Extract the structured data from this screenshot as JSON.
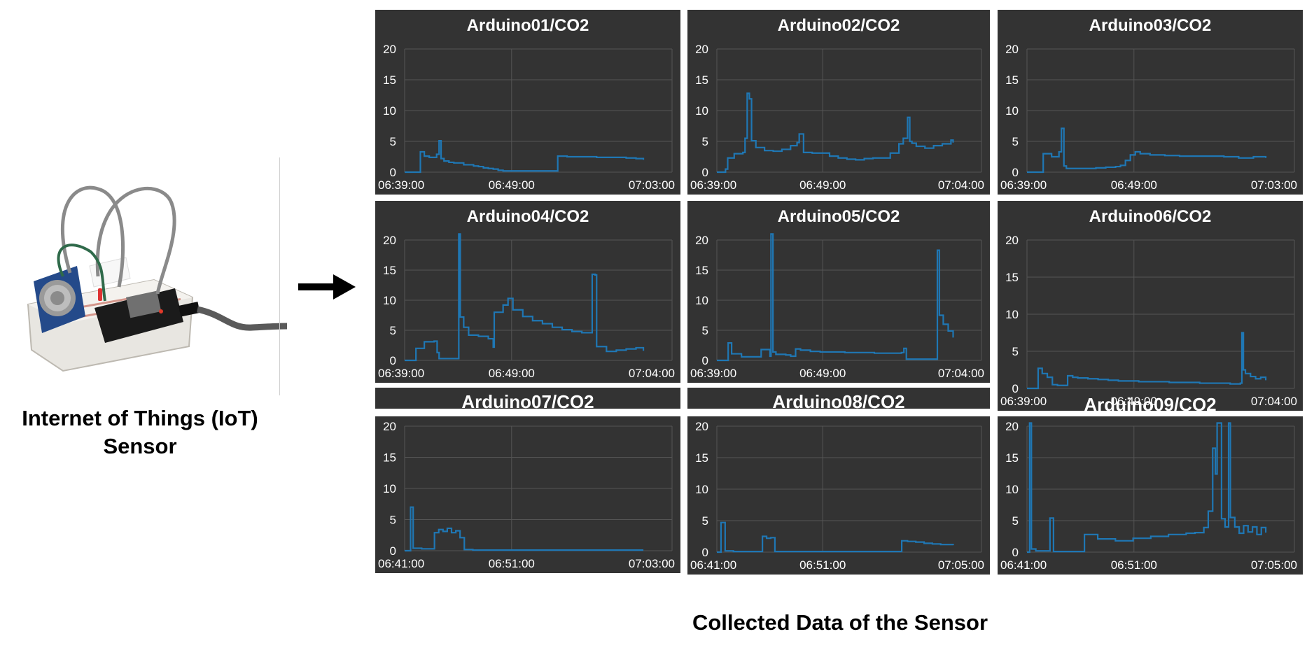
{
  "sensor_caption": {
    "line1": "Internet of Things (IoT)",
    "line2": "Sensor"
  },
  "bottom_caption": "Collected Data of the Sensor",
  "colors": {
    "panel": "#333333",
    "line": "#1f77b4",
    "grid": "#555555",
    "text": "#ffffff"
  },
  "chart_data": [
    {
      "type": "line",
      "title": "Arduino01/CO2",
      "ylim": [
        0,
        20
      ],
      "yticks": [
        0,
        5,
        10,
        15,
        20
      ],
      "xticks": [
        "06:39:00",
        "06:49:00",
        "07:03:00"
      ],
      "grid": true,
      "series": [
        {
          "x": [
            0,
            3,
            3.2,
            4,
            5,
            6.5,
            7,
            7.4,
            8,
            9,
            10,
            12,
            14,
            15,
            16,
            17,
            18,
            19,
            20,
            22,
            25,
            28,
            31,
            31.1,
            33,
            36,
            39,
            42,
            45,
            47,
            48.5
          ],
          "values": [
            0,
            0,
            3.3,
            2.6,
            2.4,
            2.9,
            5.1,
            2.2,
            1.8,
            1.6,
            1.5,
            1.2,
            1.0,
            0.9,
            0.7,
            0.6,
            0.5,
            0.3,
            0.2,
            0.2,
            0.2,
            0.2,
            0.2,
            2.6,
            2.5,
            2.5,
            2.4,
            2.4,
            2.3,
            2.2,
            2.0
          ]
        }
      ]
    },
    {
      "type": "line",
      "title": "Arduino02/CO2",
      "ylim": [
        0,
        20
      ],
      "yticks": [
        0,
        5,
        10,
        15,
        20
      ],
      "xticks": [
        "06:39:00",
        "06:49:00",
        "07:04:00"
      ],
      "grid": true,
      "series": [
        {
          "x": [
            0,
            2,
            2.5,
            4,
            6,
            6.5,
            7,
            7.5,
            8,
            9,
            11,
            13,
            15,
            17,
            18.5,
            19,
            20,
            22,
            24,
            26,
            28,
            30,
            32,
            34,
            36,
            38,
            40,
            42,
            43,
            44,
            44.5,
            45,
            46,
            48,
            50,
            52,
            54,
            54.5
          ],
          "values": [
            0,
            0.5,
            2.3,
            3.0,
            3.2,
            5.5,
            12.8,
            11.9,
            5.1,
            4.0,
            3.5,
            3.4,
            3.7,
            4.3,
            4.8,
            6.2,
            3.2,
            3.1,
            3.1,
            2.6,
            2.3,
            2.1,
            2.0,
            2.2,
            2.3,
            2.3,
            3.1,
            4.6,
            5.5,
            8.9,
            5.0,
            4.7,
            4.2,
            3.9,
            4.3,
            4.6,
            5.2,
            4.8
          ]
        }
      ]
    },
    {
      "type": "line",
      "title": "Arduino03/CO2",
      "ylim": [
        0,
        20
      ],
      "yticks": [
        0,
        5,
        10,
        15,
        20
      ],
      "xticks": [
        "06:39:00",
        "06:49:00",
        "07:03:00"
      ],
      "grid": true,
      "series": [
        {
          "x": [
            0,
            3,
            3.3,
            5,
            6.5,
            7,
            7.5,
            8,
            10,
            12,
            14,
            16,
            18,
            19,
            20,
            21,
            22,
            23,
            25,
            28,
            31,
            34,
            37,
            40,
            43,
            46,
            48.5
          ],
          "values": [
            0,
            0,
            3.0,
            2.5,
            3.3,
            7.1,
            1.0,
            0.6,
            0.6,
            0.6,
            0.7,
            0.8,
            0.9,
            1.1,
            1.9,
            2.8,
            3.3,
            3.0,
            2.8,
            2.7,
            2.6,
            2.6,
            2.6,
            2.5,
            2.3,
            2.5,
            2.3
          ]
        }
      ]
    },
    {
      "type": "line",
      "title": "Arduino04/CO2",
      "ylim": [
        0,
        20
      ],
      "yticks": [
        0,
        5,
        10,
        15,
        20
      ],
      "xticks": [
        "06:39:00",
        "06:49:00",
        "07:04:00"
      ],
      "grid": true,
      "series": [
        {
          "x": [
            0,
            2,
            2.3,
            4,
            6,
            6.6,
            7,
            8,
            10,
            10.8,
            11,
            11.3,
            12,
            13,
            15,
            17,
            18,
            18.2,
            20,
            21,
            22,
            24,
            26,
            28,
            30,
            32,
            34,
            36,
            38,
            38.1,
            38.7,
            39,
            41,
            43,
            45,
            47,
            48.5
          ],
          "values": [
            0,
            0,
            2.0,
            3.1,
            3.2,
            1.3,
            0.3,
            0.3,
            0.3,
            0.3,
            21,
            7.2,
            5.5,
            4.2,
            4.0,
            3.6,
            2.2,
            8.0,
            9.2,
            10.3,
            8.4,
            7.3,
            6.6,
            6.1,
            5.5,
            5.1,
            4.8,
            4.6,
            4.6,
            14.3,
            14.2,
            2.3,
            1.5,
            1.7,
            1.9,
            2.1,
            1.6
          ]
        }
      ]
    },
    {
      "type": "line",
      "title": "Arduino05/CO2",
      "ylim": [
        0,
        20
      ],
      "yticks": [
        0,
        5,
        10,
        15,
        20
      ],
      "xticks": [
        "06:39:00",
        "06:49:00",
        "07:04:00"
      ],
      "grid": true,
      "series": [
        {
          "x": [
            0,
            2,
            2.3,
            3,
            5,
            7,
            9,
            10.8,
            11,
            11.4,
            12,
            14,
            15,
            16,
            17,
            19,
            21,
            23,
            26,
            29,
            32,
            35,
            37.5,
            38,
            38.5,
            39,
            42,
            44.4,
            44.8,
            45.2,
            46,
            47,
            48
          ],
          "values": [
            0,
            0,
            2.9,
            1.1,
            0.6,
            0.6,
            1.8,
            0.7,
            21,
            1.4,
            1.0,
            0.9,
            0.7,
            1.9,
            1.7,
            1.5,
            1.4,
            1.4,
            1.3,
            1.3,
            1.2,
            1.2,
            1.3,
            2.0,
            0.2,
            0.2,
            0.2,
            0.2,
            18.3,
            7.5,
            6.0,
            4.9,
            3.8
          ]
        }
      ]
    },
    {
      "type": "line",
      "title": "Arduino06/CO2",
      "ylim": [
        0,
        20
      ],
      "yticks": [
        0,
        5,
        10,
        15,
        20
      ],
      "xticks": [
        "06:39:00",
        "06:49:00",
        "07:04:00"
      ],
      "grid": true,
      "series": [
        {
          "x": [
            0,
            2,
            2.2,
            3,
            4,
            5,
            6,
            7,
            8,
            9,
            10,
            12,
            14,
            16,
            18,
            20,
            22,
            25,
            28,
            31,
            34,
            37,
            40,
            42,
            42.3,
            42.6,
            43,
            44,
            45,
            46,
            47
          ],
          "values": [
            0,
            0,
            2.7,
            2.0,
            1.5,
            0.5,
            0.4,
            0.4,
            1.7,
            1.5,
            1.4,
            1.3,
            1.2,
            1.1,
            1.0,
            1.0,
            0.9,
            0.9,
            0.8,
            0.8,
            0.7,
            0.7,
            0.6,
            0.7,
            7.5,
            2.5,
            2.0,
            1.6,
            1.3,
            1.5,
            1.1
          ]
        }
      ]
    },
    {
      "type": "line",
      "title": "Arduino07/CO2",
      "ylim": [
        0,
        20
      ],
      "yticks": [
        0,
        5,
        10,
        15,
        20
      ],
      "xticks": [
        "06:41:00",
        "06:51:00",
        "07:03:00"
      ],
      "grid": true,
      "series": [
        {
          "x": [
            0,
            0.5,
            0.7,
            1,
            2,
            2.5,
            3,
            3.5,
            4,
            4.5,
            5,
            5.5,
            6,
            6.5,
            7,
            8,
            10,
            14,
            18,
            22,
            26,
            28
          ],
          "values": [
            0,
            0,
            7.0,
            0.4,
            0.3,
            0.3,
            0.3,
            2.9,
            3.4,
            3.1,
            3.6,
            2.9,
            3.2,
            2.1,
            0.2,
            0.1,
            0.1,
            0.1,
            0.1,
            0.1,
            0.1,
            0.1
          ]
        }
      ]
    },
    {
      "type": "line",
      "title": "Arduino08/CO2",
      "ylim": [
        0,
        20
      ],
      "yticks": [
        0,
        5,
        10,
        15,
        20
      ],
      "xticks": [
        "06:41:00",
        "06:51:00",
        "07:05:00"
      ],
      "grid": true,
      "series": [
        {
          "x": [
            0,
            0.3,
            0.5,
            1,
            2,
            3,
            4,
            5,
            5.5,
            6,
            6.5,
            7,
            8,
            10,
            13,
            16,
            19,
            22,
            22.3,
            23,
            24,
            25,
            26,
            27,
            28.5
          ],
          "values": [
            0,
            0,
            4.7,
            0.2,
            0.1,
            0.1,
            0.1,
            0.1,
            2.5,
            2.2,
            2.3,
            0.1,
            0.1,
            0.1,
            0.1,
            0.1,
            0.1,
            0.1,
            1.8,
            1.7,
            1.6,
            1.4,
            1.3,
            1.2,
            1.1
          ]
        }
      ]
    },
    {
      "type": "line",
      "title": "Arduino09/CO2",
      "ylim": [
        0,
        20
      ],
      "yticks": [
        0,
        5,
        10,
        15,
        20
      ],
      "xticks": [
        "06:41:00",
        "06:51:00",
        "07:05:00"
      ],
      "grid": true,
      "series": [
        {
          "x": [
            0,
            0.3,
            0.5,
            1,
            2,
            2.5,
            2.6,
            3,
            4,
            5,
            6,
            6.5,
            8,
            10,
            12,
            14,
            16,
            18,
            19,
            20,
            20.5,
            21,
            21.3,
            21.5,
            22,
            22.4,
            22.8,
            23,
            23.5,
            24,
            24.5,
            25,
            25.5,
            26,
            26.5,
            27
          ],
          "values": [
            0,
            20.5,
            0.5,
            0.2,
            0.2,
            0.2,
            5.4,
            0.1,
            0.1,
            0.1,
            0.1,
            2.8,
            2.1,
            1.8,
            2.2,
            2.5,
            2.8,
            3.0,
            3.1,
            3.9,
            6.5,
            16.5,
            12.4,
            20.5,
            5.3,
            4.0,
            20.5,
            5.5,
            4.0,
            3.0,
            4.2,
            3.2,
            4.0,
            2.8,
            3.9,
            3.1
          ]
        }
      ]
    }
  ]
}
